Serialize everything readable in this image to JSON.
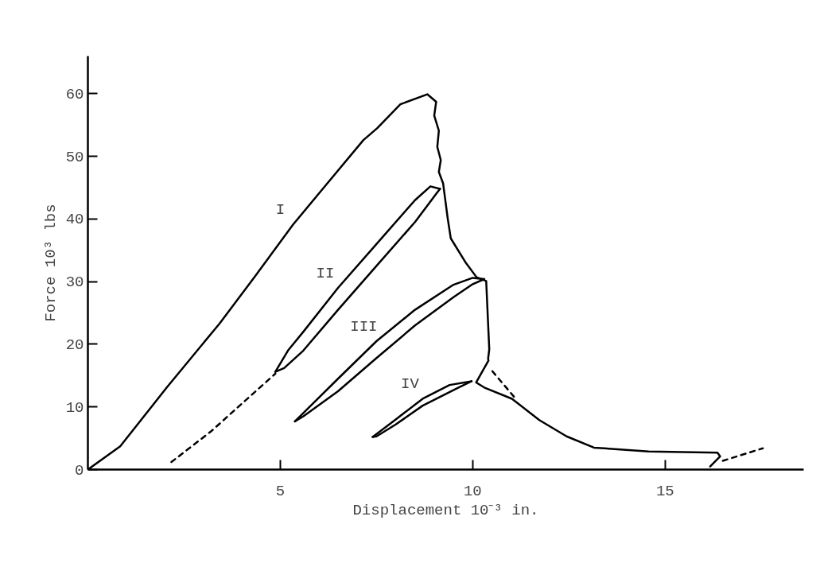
{
  "chart_data": {
    "type": "line",
    "xlabel": "Displacement 10⁻³ in.",
    "ylabel": "Force 10³ lbs",
    "xlim": [
      0,
      18.6
    ],
    "ylim": [
      0,
      66
    ],
    "xticks": [
      5,
      10,
      15
    ],
    "yticks": [
      0,
      10,
      20,
      30,
      40,
      50,
      60
    ],
    "grid": false,
    "series": [
      {
        "color": "#000000",
        "line_style": "solid",
        "x": [
          0,
          0.84,
          2.05,
          3.42,
          4.34,
          5.33,
          6.09,
          7.16,
          7.52,
          8.12,
          8.82,
          9.05,
          9.0,
          9.12,
          9.08,
          9.17,
          9.12,
          9.23,
          9.35,
          9.43,
          9.81,
          10.1,
          10.35,
          10.43,
          10.4,
          10.41,
          10.09,
          10.3,
          11.02,
          11.73,
          12.44,
          13.15,
          14.57,
          16.36,
          16.43,
          16.17
        ],
        "values": [
          0,
          3.7,
          13.1,
          23.3,
          30.8,
          39.1,
          44.7,
          52.6,
          54.5,
          58.3,
          59.9,
          58.7,
          56.5,
          54.1,
          51.5,
          49.4,
          47.5,
          45.7,
          40.1,
          36.9,
          33.1,
          30.7,
          30.1,
          19.2,
          17.7,
          17.4,
          13.9,
          13.1,
          11.3,
          7.9,
          5.3,
          3.5,
          2.9,
          2.7,
          2.1,
          0.5
        ]
      },
      {
        "color": "#000000",
        "line_style": "solid",
        "x": [
          4.87,
          5.2,
          5.6,
          6.5,
          7.5,
          8.5,
          8.9,
          9.15
        ],
        "values": [
          15.6,
          19,
          22,
          29,
          36,
          43,
          45.2,
          44.8
        ]
      },
      {
        "color": "#000000",
        "line_style": "solid",
        "x": [
          4.87,
          5.1,
          5.6,
          6.5,
          7.5,
          8.5,
          9.05,
          9.15
        ],
        "values": [
          15.6,
          16.2,
          19,
          25.5,
          32.5,
          39.5,
          44.0,
          44.8
        ]
      },
      {
        "color": "#000000",
        "line_style": "solid",
        "x": [
          5.38,
          6.5,
          7.5,
          8.5,
          9.5,
          10.0,
          10.3
        ],
        "values": [
          7.7,
          14.5,
          20.5,
          25.5,
          29.5,
          30.6,
          30.4
        ]
      },
      {
        "color": "#000000",
        "line_style": "solid",
        "x": [
          5.38,
          5.6,
          6.5,
          7.5,
          8.5,
          9.5,
          10.0,
          10.3
        ],
        "values": [
          7.7,
          8.5,
          12.5,
          17.8,
          23,
          27.5,
          29.6,
          30.4
        ]
      },
      {
        "color": "#000000",
        "line_style": "solid",
        "x": [
          7.4,
          8.0,
          8.7,
          9.4,
          9.97
        ],
        "values": [
          5.2,
          8,
          11.3,
          13.5,
          14.1
        ]
      },
      {
        "color": "#000000",
        "line_style": "solid",
        "x": [
          7.4,
          7.5,
          8.0,
          8.7,
          9.6,
          9.97
        ],
        "values": [
          5.2,
          5.3,
          7.2,
          10.2,
          13.0,
          14.1
        ]
      },
      {
        "color": "#000000",
        "line_style": "dashed",
        "x": [
          2.17,
          3.2,
          4.87
        ],
        "values": [
          1.2,
          6.1,
          15.3
        ]
      },
      {
        "color": "#000000",
        "line_style": "dashed",
        "x": [
          10.51,
          11.09
        ],
        "values": [
          15.7,
          11.5
        ]
      },
      {
        "color": "#000000",
        "line_style": "dashed",
        "x": [
          16.5,
          17.54
        ],
        "values": [
          1.4,
          3.4
        ]
      }
    ],
    "annotations": [
      {
        "text": "I",
        "x": 5.33,
        "y": 39.1
      },
      {
        "text": "II",
        "x": 6.5,
        "y": 29
      },
      {
        "text": "III",
        "x": 7.5,
        "y": 20.5
      },
      {
        "text": "IV",
        "x": 8.7,
        "y": 11.3
      }
    ]
  }
}
